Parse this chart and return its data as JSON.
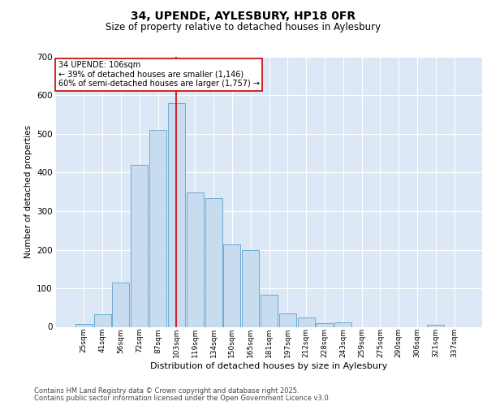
{
  "title1": "34, UPENDE, AYLESBURY, HP18 0FR",
  "title2": "Size of property relative to detached houses in Aylesbury",
  "xlabel": "Distribution of detached houses by size in Aylesbury",
  "ylabel": "Number of detached properties",
  "categories": [
    "25sqm",
    "41sqm",
    "56sqm",
    "72sqm",
    "87sqm",
    "103sqm",
    "119sqm",
    "134sqm",
    "150sqm",
    "165sqm",
    "181sqm",
    "197sqm",
    "212sqm",
    "228sqm",
    "243sqm",
    "259sqm",
    "275sqm",
    "290sqm",
    "306sqm",
    "321sqm",
    "337sqm"
  ],
  "values": [
    8,
    32,
    115,
    420,
    510,
    580,
    348,
    333,
    213,
    200,
    83,
    35,
    25,
    10,
    12,
    0,
    0,
    0,
    0,
    5,
    0
  ],
  "bar_color": "#c8dcf0",
  "bar_edge_color": "#6aaad4",
  "vline_x": 5,
  "vline_color": "#cc0000",
  "annotation_text": "34 UPENDE: 106sqm\n← 39% of detached houses are smaller (1,146)\n60% of semi-detached houses are larger (1,757) →",
  "annotation_box_color": "#ffffff",
  "annotation_box_edge": "#cc0000",
  "ylim": [
    0,
    700
  ],
  "yticks": [
    0,
    100,
    200,
    300,
    400,
    500,
    600,
    700
  ],
  "background_color": "#dce8f5",
  "footer1": "Contains HM Land Registry data © Crown copyright and database right 2025.",
  "footer2": "Contains public sector information licensed under the Open Government Licence v3.0."
}
